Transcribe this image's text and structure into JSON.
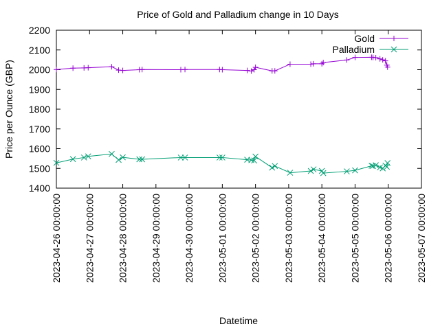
{
  "chart_data": {
    "type": "line",
    "title": "Price of Gold and Palladium change in 10 Days",
    "xlabel": "Datetime",
    "ylabel": "Price per Ounce (GBP)",
    "ylim": [
      1400,
      2200
    ],
    "yticks": [
      1400,
      1500,
      1600,
      1700,
      1800,
      1900,
      2000,
      2100,
      2200
    ],
    "xlim": [
      "2023-04-26 00:00:00",
      "2023-05-07 00:00:00"
    ],
    "xticks": [
      "2023-04-26 00:00:00",
      "2023-04-27 00:00:00",
      "2023-04-28 00:00:00",
      "2023-04-29 00:00:00",
      "2023-04-30 00:00:00",
      "2023-05-01 00:00:00",
      "2023-05-02 00:00:00",
      "2023-05-03 00:00:00",
      "2023-05-04 00:00:00",
      "2023-05-05 00:00:00",
      "2023-05-06 00:00:00",
      "2023-05-07 00:00:00"
    ],
    "grid": false,
    "legend": "top-right",
    "series": [
      {
        "name": "Gold",
        "color": "#9400d3",
        "marker": "plus",
        "points": [
          [
            "2023-04-26 00:00:00",
            2001
          ],
          [
            "2023-04-26 12:00:00",
            2008
          ],
          [
            "2023-04-26 20:00:00",
            2009
          ],
          [
            "2023-04-26 23:00:00",
            2010
          ],
          [
            "2023-04-27 16:00:00",
            2015
          ],
          [
            "2023-04-27 21:00:00",
            1998
          ],
          [
            "2023-04-28 00:00:00",
            1996
          ],
          [
            "2023-04-28 12:00:00",
            2000
          ],
          [
            "2023-04-28 14:00:00",
            2001
          ],
          [
            "2023-04-29 18:00:00",
            2000
          ],
          [
            "2023-04-29 21:00:00",
            2001
          ],
          [
            "2023-04-30 22:00:00",
            2001
          ],
          [
            "2023-05-01 00:00:00",
            2000
          ],
          [
            "2023-05-01 18:00:00",
            1996
          ],
          [
            "2023-05-01 21:00:00",
            1993
          ],
          [
            "2023-05-01 23:00:00",
            2000
          ],
          [
            "2023-05-02 00:00:00",
            2012
          ],
          [
            "2023-05-02 12:00:00",
            1994
          ],
          [
            "2023-05-02 14:00:00",
            1994
          ],
          [
            "2023-05-03 01:00:00",
            2028
          ],
          [
            "2023-05-03 16:00:00",
            2028
          ],
          [
            "2023-05-03 18:00:00",
            2030
          ],
          [
            "2023-05-04 00:00:00",
            2030
          ],
          [
            "2023-05-04 01:00:00",
            2036
          ],
          [
            "2023-05-04 18:00:00",
            2049
          ],
          [
            "2023-05-05 00:00:00",
            2062
          ],
          [
            "2023-05-05 12:00:00",
            2063
          ],
          [
            "2023-05-05 13:00:00",
            2062
          ],
          [
            "2023-05-05 15:00:00",
            2061
          ],
          [
            "2023-05-05 18:00:00",
            2055
          ],
          [
            "2023-05-05 20:00:00",
            2050
          ],
          [
            "2023-05-05 22:00:00",
            2045
          ],
          [
            "2023-05-05 23:00:00",
            2023
          ],
          [
            "2023-05-05 23:30:00",
            2013
          ]
        ]
      },
      {
        "name": "Palladium",
        "color": "#009e73",
        "marker": "cross",
        "points": [
          [
            "2023-04-26 00:00:00",
            1528
          ],
          [
            "2023-04-26 12:00:00",
            1547
          ],
          [
            "2023-04-26 20:00:00",
            1555
          ],
          [
            "2023-04-26 23:00:00",
            1561
          ],
          [
            "2023-04-27 16:00:00",
            1573
          ],
          [
            "2023-04-27 21:00:00",
            1543
          ],
          [
            "2023-04-28 00:00:00",
            1556
          ],
          [
            "2023-04-28 12:00:00",
            1546
          ],
          [
            "2023-04-28 14:00:00",
            1546
          ],
          [
            "2023-04-29 18:00:00",
            1555
          ],
          [
            "2023-04-29 21:00:00",
            1555
          ],
          [
            "2023-04-30 22:00:00",
            1555
          ],
          [
            "2023-05-01 00:00:00",
            1555
          ],
          [
            "2023-05-01 18:00:00",
            1544
          ],
          [
            "2023-05-01 21:00:00",
            1542
          ],
          [
            "2023-05-01 23:00:00",
            1540
          ],
          [
            "2023-05-02 00:00:00",
            1560
          ],
          [
            "2023-05-02 12:00:00",
            1504
          ],
          [
            "2023-05-02 14:00:00",
            1512
          ],
          [
            "2023-05-03 01:00:00",
            1478
          ],
          [
            "2023-05-03 16:00:00",
            1487
          ],
          [
            "2023-05-03 18:00:00",
            1495
          ],
          [
            "2023-05-04 00:00:00",
            1487
          ],
          [
            "2023-05-04 01:00:00",
            1476
          ],
          [
            "2023-05-04 18:00:00",
            1485
          ],
          [
            "2023-05-05 00:00:00",
            1490
          ],
          [
            "2023-05-05 12:00:00",
            1513
          ],
          [
            "2023-05-05 13:00:00",
            1512
          ],
          [
            "2023-05-05 15:00:00",
            1516
          ],
          [
            "2023-05-05 18:00:00",
            1505
          ],
          [
            "2023-05-05 20:00:00",
            1500
          ],
          [
            "2023-05-05 22:00:00",
            1514
          ],
          [
            "2023-05-05 23:00:00",
            1508
          ],
          [
            "2023-05-05 23:30:00",
            1527
          ]
        ]
      }
    ]
  }
}
